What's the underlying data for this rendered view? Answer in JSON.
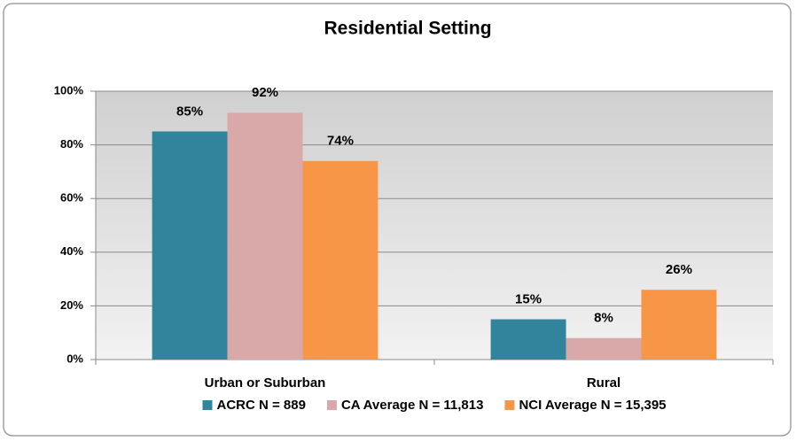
{
  "chart_data": {
    "type": "bar",
    "title": "Residential Setting",
    "categories": [
      "Urban or Suburban",
      "Rural"
    ],
    "series": [
      {
        "name": "ACRC N = 889",
        "color": "#31849b",
        "values": [
          85,
          15
        ],
        "value_labels": [
          "85%",
          "15%"
        ]
      },
      {
        "name": "CA Average N = 11,813",
        "color": "#d9a9aa",
        "values": [
          92,
          8
        ],
        "value_labels": [
          "92%",
          "8%"
        ]
      },
      {
        "name": "NCI Average N = 15,395",
        "color": "#f79646",
        "values": [
          74,
          26
        ],
        "value_labels": [
          "74%",
          "26%"
        ]
      }
    ],
    "ylim": [
      0,
      100
    ],
    "yticks": [
      {
        "value": 0,
        "label": "0%"
      },
      {
        "value": 20,
        "label": "20%"
      },
      {
        "value": 40,
        "label": "40%"
      },
      {
        "value": 60,
        "label": "60%"
      },
      {
        "value": 80,
        "label": "80%"
      },
      {
        "value": 100,
        "label": "100%"
      }
    ],
    "grid": true,
    "legend": "bottom"
  }
}
